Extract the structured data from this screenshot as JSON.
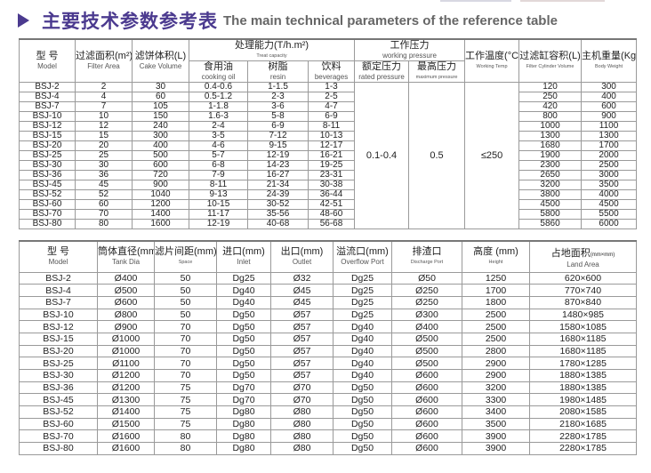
{
  "title": {
    "zh": "主要技术参数参考表",
    "en": "The main technical parameters of the reference table"
  },
  "table1": {
    "headers": {
      "model": {
        "zh": "型 号",
        "en": "Model"
      },
      "filter_area": {
        "zh": "过滤面积(m²)",
        "en": "Filter Area"
      },
      "cake_volume": {
        "zh": "滤饼体积(L)",
        "en": "Cake Volume"
      },
      "treat_capacity": {
        "zh": "处理能力(T/h.m²)",
        "en": "Treat capacity"
      },
      "cooking_oil": {
        "zh": "食用油",
        "en": "cooking oil"
      },
      "resin": {
        "zh": "树脂",
        "en": "resin"
      },
      "beverages": {
        "zh": "饮料",
        "en": "beverages"
      },
      "working_pressure": {
        "zh": "工作压力",
        "en": "working pressure"
      },
      "rated_pressure": {
        "zh": "额定压力",
        "en": "rated pressure"
      },
      "maximum_pressure": {
        "zh": "最高压力",
        "en": "maximum pressure"
      },
      "working_temp": {
        "zh": "工作温度(°C)",
        "en": "Working Temp"
      },
      "filter_cylinder_volume": {
        "zh": "过滤缸容积(L)",
        "en": "Filter Cylinder Volume"
      },
      "body_weight": {
        "zh": "主机重量(Kg)",
        "en": "Body Weight"
      }
    },
    "shared": {
      "rated_pressure": "0.1-0.4",
      "maximum_pressure": "0.5",
      "working_temp": "≤250"
    },
    "rows": [
      [
        "BSJ-2",
        "2",
        "30",
        "0.4-0.6",
        "1-1.5",
        "1-3",
        "120",
        "300"
      ],
      [
        "BSJ-4",
        "4",
        "60",
        "0.5-1.2",
        "2-3",
        "2-5",
        "250",
        "400"
      ],
      [
        "BSJ-7",
        "7",
        "105",
        "1-1.8",
        "3-6",
        "4-7",
        "420",
        "600"
      ],
      [
        "BSJ-10",
        "10",
        "150",
        "1.6-3",
        "5-8",
        "6-9",
        "800",
        "900"
      ],
      [
        "BSJ-12",
        "12",
        "240",
        "2-4",
        "6-9",
        "8-11",
        "1000",
        "1100"
      ],
      [
        "BSJ-15",
        "15",
        "300",
        "3-5",
        "7-12",
        "10-13",
        "1300",
        "1300"
      ],
      [
        "BSJ-20",
        "20",
        "400",
        "4-6",
        "9-15",
        "12-17",
        "1680",
        "1700"
      ],
      [
        "BSJ-25",
        "25",
        "500",
        "5-7",
        "12-19",
        "16-21",
        "1900",
        "2000"
      ],
      [
        "BSJ-30",
        "30",
        "600",
        "6-8",
        "14-23",
        "19-25",
        "2300",
        "2500"
      ],
      [
        "BSJ-36",
        "36",
        "720",
        "7-9",
        "16-27",
        "23-31",
        "2650",
        "3000"
      ],
      [
        "BSJ-45",
        "45",
        "900",
        "8-11",
        "21-34",
        "30-38",
        "3200",
        "3500"
      ],
      [
        "BSJ-52",
        "52",
        "1040",
        "9-13",
        "24-39",
        "36-44",
        "3800",
        "4000"
      ],
      [
        "BSJ-60",
        "60",
        "1200",
        "10-15",
        "30-52",
        "42-51",
        "4500",
        "4500"
      ],
      [
        "BSJ-70",
        "70",
        "1400",
        "11-17",
        "35-56",
        "48-60",
        "5800",
        "5500"
      ],
      [
        "BSJ-80",
        "80",
        "1600",
        "12-19",
        "40-68",
        "56-68",
        "5860",
        "6000"
      ]
    ]
  },
  "table2": {
    "headers": [
      {
        "zh": "型 号",
        "en": "Model"
      },
      {
        "zh": "筒体直径(mm)",
        "en": "Tank Dia"
      },
      {
        "zh": "滤片间距(mm)",
        "en": "Space"
      },
      {
        "zh": "进口(mm)",
        "en": "Inlet"
      },
      {
        "zh": "出口(mm)",
        "en": "Outlet"
      },
      {
        "zh": "溢流口(mm)",
        "en": "Overflow Port"
      },
      {
        "zh": "排渣口",
        "en": "Discharge Port"
      },
      {
        "zh": "高度 (mm)",
        "en": "Height"
      },
      {
        "zh": "占地面积",
        "zh_unit": "(mm×mm)",
        "en": "Land Area"
      }
    ],
    "rows": [
      [
        "BSJ-2",
        "Ø400",
        "50",
        "Dg25",
        "Ø32",
        "Dg25",
        "Ø50",
        "1250",
        "620×600"
      ],
      [
        "BSJ-4",
        "Ø500",
        "50",
        "Dg40",
        "Ø45",
        "Dg25",
        "Ø250",
        "1700",
        "770×740"
      ],
      [
        "BSJ-7",
        "Ø600",
        "50",
        "Dg40",
        "Ø45",
        "Dg25",
        "Ø250",
        "1800",
        "870×840"
      ],
      [
        "BSJ-10",
        "Ø800",
        "50",
        "Dg50",
        "Ø57",
        "Dg25",
        "Ø300",
        "2500",
        "1480×985"
      ],
      [
        "BSJ-12",
        "Ø900",
        "70",
        "Dg50",
        "Ø57",
        "Dg40",
        "Ø400",
        "2500",
        "1580×1085"
      ],
      [
        "BSJ-15",
        "Ø1000",
        "70",
        "Dg50",
        "Ø57",
        "Dg40",
        "Ø500",
        "2500",
        "1680×1185"
      ],
      [
        "BSJ-20",
        "Ø1000",
        "70",
        "Dg50",
        "Ø57",
        "Dg40",
        "Ø500",
        "2800",
        "1680×1185"
      ],
      [
        "BSJ-25",
        "Ø1100",
        "70",
        "Dg50",
        "Ø57",
        "Dg40",
        "Ø500",
        "2900",
        "1780×1285"
      ],
      [
        "BSJ-30",
        "Ø1200",
        "70",
        "Dg50",
        "Ø57",
        "Dg40",
        "Ø600",
        "2900",
        "1880×1385"
      ],
      [
        "BSJ-36",
        "Ø1200",
        "75",
        "Dg70",
        "Ø70",
        "Dg50",
        "Ø600",
        "3200",
        "1880×1385"
      ],
      [
        "BSJ-45",
        "Ø1300",
        "75",
        "Dg70",
        "Ø70",
        "Dg50",
        "Ø600",
        "3300",
        "1980×1485"
      ],
      [
        "BSJ-52",
        "Ø1400",
        "75",
        "Dg80",
        "Ø80",
        "Dg50",
        "Ø600",
        "3400",
        "2080×1585"
      ],
      [
        "BSJ-60",
        "Ø1500",
        "75",
        "Dg80",
        "Ø80",
        "Dg50",
        "Ø600",
        "3500",
        "2180×1685"
      ],
      [
        "BSJ-70",
        "Ø1600",
        "80",
        "Dg80",
        "Ø80",
        "Dg50",
        "Ø600",
        "3900",
        "2280×1785"
      ],
      [
        "BSJ-80",
        "Ø1600",
        "80",
        "Dg80",
        "Ø80",
        "Dg50",
        "Ø600",
        "3900",
        "2280×1785"
      ]
    ]
  },
  "colors": {
    "title": "#4b3a8f",
    "border": "#9a9a9a"
  }
}
